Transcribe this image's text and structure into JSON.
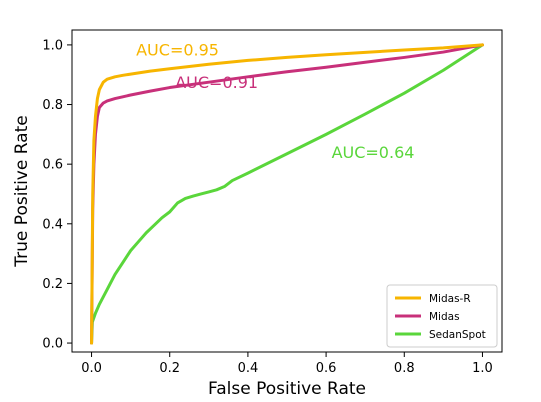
{
  "chart_data": {
    "type": "line",
    "xlabel": "False Positive Rate",
    "ylabel": "True Positive Rate",
    "xlim": [
      -0.05,
      1.05
    ],
    "ylim": [
      -0.03,
      1.05
    ],
    "xticks": [
      "0.0",
      "0.2",
      "0.4",
      "0.6",
      "0.8",
      "1.0"
    ],
    "yticks": [
      "0.0",
      "0.2",
      "0.4",
      "0.6",
      "0.8",
      "1.0"
    ],
    "grid": false,
    "legend_position": "bottom-right",
    "series": [
      {
        "name": "Midas-R",
        "color": "#f7b500",
        "auc_label": "AUC=0.95",
        "auc_label_pos": [
          0.22,
          0.985
        ],
        "x": [
          0,
          0.003,
          0.006,
          0.01,
          0.015,
          0.02,
          0.03,
          0.04,
          0.06,
          0.08,
          0.1,
          0.15,
          0.2,
          0.3,
          0.4,
          0.5,
          0.6,
          0.7,
          0.8,
          0.9,
          1.0
        ],
        "y": [
          0,
          0.5,
          0.68,
          0.76,
          0.82,
          0.85,
          0.875,
          0.885,
          0.893,
          0.898,
          0.902,
          0.912,
          0.92,
          0.935,
          0.948,
          0.958,
          0.967,
          0.975,
          0.983,
          0.99,
          1.0
        ]
      },
      {
        "name": "Midas",
        "color": "#c8307a",
        "auc_label": "AUC=0.91",
        "auc_label_pos": [
          0.32,
          0.875
        ],
        "x": [
          0,
          0.003,
          0.006,
          0.01,
          0.015,
          0.02,
          0.03,
          0.04,
          0.06,
          0.08,
          0.1,
          0.15,
          0.2,
          0.3,
          0.4,
          0.5,
          0.6,
          0.7,
          0.8,
          0.9,
          1.0
        ],
        "y": [
          0,
          0.45,
          0.6,
          0.7,
          0.76,
          0.79,
          0.805,
          0.812,
          0.82,
          0.826,
          0.832,
          0.845,
          0.857,
          0.875,
          0.893,
          0.91,
          0.925,
          0.942,
          0.958,
          0.976,
          1.0
        ]
      },
      {
        "name": "SedanSpot",
        "color": "#5ad63b",
        "auc_label": "AUC=0.64",
        "auc_label_pos": [
          0.72,
          0.64
        ],
        "x": [
          0,
          0.002,
          0.01,
          0.02,
          0.04,
          0.06,
          0.08,
          0.1,
          0.12,
          0.14,
          0.16,
          0.18,
          0.2,
          0.22,
          0.24,
          0.26,
          0.28,
          0.3,
          0.32,
          0.34,
          0.36,
          0.4,
          0.5,
          0.6,
          0.7,
          0.8,
          0.9,
          1.0
        ],
        "y": [
          0,
          0.07,
          0.1,
          0.13,
          0.18,
          0.23,
          0.27,
          0.31,
          0.34,
          0.37,
          0.395,
          0.42,
          0.44,
          0.47,
          0.485,
          0.493,
          0.5,
          0.507,
          0.514,
          0.525,
          0.545,
          0.57,
          0.635,
          0.7,
          0.768,
          0.838,
          0.915,
          1.0
        ]
      }
    ]
  }
}
